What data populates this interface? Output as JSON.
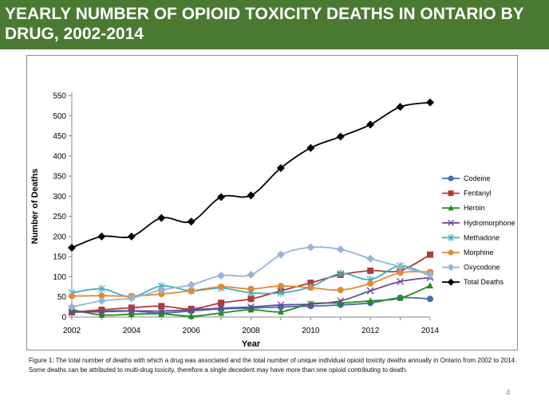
{
  "title": "YEARLY NUMBER OF OPIOID TOXICITY DEATHS IN ONTARIO BY DRUG, 2002-2014",
  "caption": "Figure 1: The total number of deaths with which a drug was associated and the total number of unique individual opioid toxicity deaths annually in Ontario from 2002 to 2014. Some deaths can be attributed to multi-drug toxicity, therefore a single decedent may have more than one opioid contributing to death.",
  "page_number": "4",
  "colors": {
    "title_bar": "#4a7a32"
  },
  "chart_data": {
    "type": "line",
    "xlabel": "Year",
    "ylabel": "Number of Deaths",
    "x": [
      2002,
      2003,
      2004,
      2005,
      2006,
      2007,
      2008,
      2009,
      2010,
      2011,
      2012,
      2013,
      2014
    ],
    "xticks": [
      "2002",
      "2004",
      "2006",
      "2008",
      "2010",
      "2012",
      "2014"
    ],
    "yticks": [
      "0",
      "50",
      "100",
      "150",
      "200",
      "250",
      "300",
      "350",
      "400",
      "450",
      "500",
      "550"
    ],
    "xlim": [
      2002,
      2014
    ],
    "ylim": [
      0,
      550
    ],
    "grid": false,
    "legend_position": "right",
    "series": [
      {
        "name": "Codeine",
        "color": "#3f6faa",
        "marker": "circle",
        "values": [
          12,
          15,
          15,
          10,
          15,
          20,
          22,
          25,
          27,
          30,
          35,
          48,
          45
        ]
      },
      {
        "name": "Fentanyl",
        "color": "#b03b3b",
        "marker": "square",
        "values": [
          12,
          18,
          23,
          27,
          20,
          35,
          45,
          65,
          85,
          105,
          115,
          115,
          155
        ]
      },
      {
        "name": "Heroin",
        "color": "#228b22",
        "marker": "triangle",
        "values": [
          18,
          5,
          7,
          8,
          2,
          10,
          18,
          13,
          33,
          35,
          40,
          47,
          78
        ]
      },
      {
        "name": "Hydromorphone",
        "color": "#6a4a8c",
        "marker": "x",
        "values": [
          12,
          13,
          15,
          15,
          18,
          22,
          25,
          30,
          32,
          40,
          65,
          88,
          98
        ]
      },
      {
        "name": "Methadone",
        "color": "#3eaec2",
        "marker": "star",
        "values": [
          60,
          70,
          50,
          77,
          65,
          72,
          60,
          60,
          75,
          108,
          93,
          127,
          102
        ]
      },
      {
        "name": "Morphine",
        "color": "#e08a35",
        "marker": "circle",
        "values": [
          52,
          53,
          52,
          57,
          65,
          75,
          70,
          77,
          73,
          67,
          83,
          110,
          112
        ]
      },
      {
        "name": "Oxycodone",
        "color": "#98b3d6",
        "marker": "diamond",
        "values": [
          25,
          40,
          47,
          67,
          80,
          103,
          105,
          155,
          173,
          168,
          145,
          125,
          105
        ]
      },
      {
        "name": "Total Deaths",
        "color": "#000000",
        "marker": "diamond",
        "values": [
          172,
          200,
          200,
          246,
          237,
          298,
          302,
          370,
          420,
          448,
          478,
          522,
          533
        ]
      }
    ]
  }
}
